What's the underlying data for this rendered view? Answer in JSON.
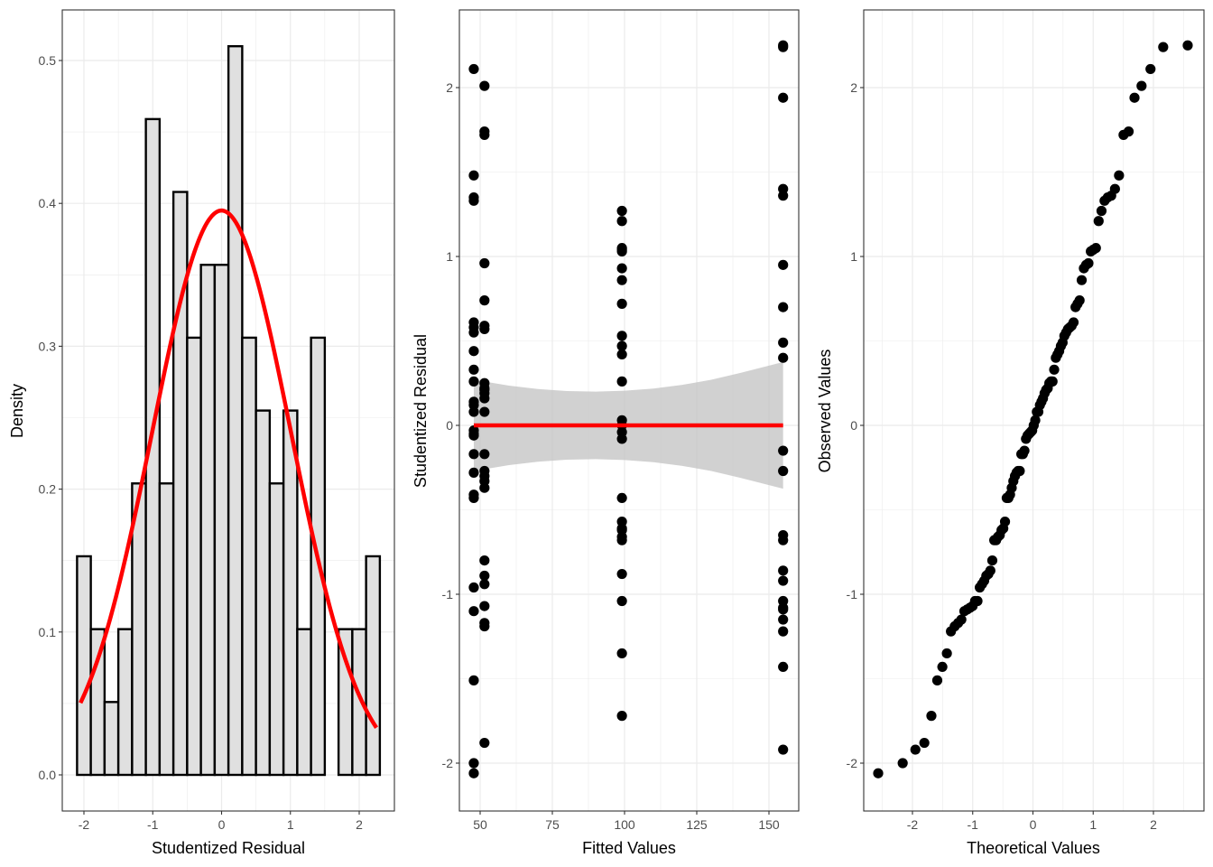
{
  "chart_data": [
    {
      "type": "histogram",
      "panel": "residual-histogram",
      "xlabel": "Studentized Residual",
      "ylabel": "Density",
      "xlim": [
        -2.3,
        2.5
      ],
      "ylim": [
        -0.025,
        0.535
      ],
      "x_ticks": [
        -2,
        -1,
        0,
        1,
        2
      ],
      "x_tick_labels": [
        "-2",
        "-1",
        "0",
        "1",
        "2"
      ],
      "y_ticks": [
        0,
        0.1,
        0.2,
        0.3,
        0.4,
        0.5
      ],
      "y_tick_labels": [
        "0.0",
        "0.1",
        "0.2",
        "0.3",
        "0.4",
        "0.5"
      ],
      "grid": true,
      "bin_start": -2.1,
      "bin_width": 0.2,
      "densities": [
        0.153,
        0.102,
        0.051,
        0.102,
        0.204,
        0.459,
        0.204,
        0.408,
        0.306,
        0.357,
        0.357,
        0.51,
        0.306,
        0.255,
        0.204,
        0.255,
        0.102,
        0.306,
        0,
        0.102,
        0.102,
        0.153
      ],
      "bar_fill": "#e0e0e0",
      "bar_stroke": "#000000",
      "overlay": {
        "name": "normal density",
        "mean": 0,
        "sd": 1.01,
        "x_range": [
          -2.05,
          2.25
        ],
        "color": "#ff0000"
      }
    },
    {
      "type": "scatter",
      "panel": "residual-vs-fitted",
      "xlabel": "Fitted Values",
      "ylabel": "Studentized Residual",
      "xlim": [
        44.5,
        160.5
      ],
      "ylim": [
        -2.37,
        2.46
      ],
      "x_ticks": [
        50,
        75,
        100,
        125,
        150
      ],
      "x_tick_labels": [
        "50",
        "75",
        "100",
        "125",
        "150"
      ],
      "y_ticks": [
        -2,
        -1,
        0,
        1,
        2
      ],
      "y_tick_labels": [
        "-2",
        "-1",
        "0",
        "1",
        "2"
      ],
      "grid": true,
      "point_color": "#000000",
      "groups": [
        {
          "fitted": 47.8,
          "residuals": [
            2.11,
            1.48,
            1.35,
            1.33,
            0.61,
            0.58,
            0.55,
            0.44,
            0.33,
            0.26,
            0.14,
            0.12,
            0.08,
            -0.03,
            -0.05,
            -0.06,
            -0.17,
            -0.28,
            -0.41,
            -0.43,
            -0.96,
            -1.1,
            -1.51,
            -2.0,
            -2.06
          ]
        },
        {
          "fitted": 51.5,
          "residuals": [
            2.01,
            1.74,
            1.72,
            0.96,
            0.74,
            0.59,
            0.57,
            0.25,
            0.22,
            0.21,
            0.19,
            0.16,
            0.08,
            -0.17,
            -0.27,
            -0.3,
            -0.33,
            -0.37,
            -0.8,
            -0.89,
            -0.94,
            -1.07,
            -1.17,
            -1.19,
            -1.88
          ]
        },
        {
          "fitted": 99.1,
          "residuals": [
            1.27,
            1.21,
            1.05,
            1.04,
            1.03,
            0.93,
            0.86,
            0.72,
            0.53,
            0.47,
            0.42,
            0.26,
            0.03,
            0.0,
            -0.04,
            -0.08,
            -0.43,
            -0.57,
            -0.61,
            -0.62,
            -0.66,
            -0.68,
            -0.88,
            -1.04,
            -1.35,
            -1.72
          ]
        },
        {
          "fitted": 154.9,
          "residuals": [
            2.25,
            2.24,
            1.94,
            1.4,
            1.36,
            0.95,
            0.7,
            0.49,
            0.4,
            -0.15,
            -0.27,
            -0.65,
            -0.68,
            -0.86,
            -0.92,
            -1.04,
            -1.08,
            -1.09,
            -1.15,
            -1.22,
            -1.43,
            -1.92
          ]
        }
      ],
      "smooth": {
        "method": "linear fit",
        "color": "#ff0000",
        "band_color": "#cccccc",
        "x": [
          47.8,
          60,
          70,
          80,
          90,
          100,
          110,
          120,
          130,
          140,
          154.9
        ],
        "fit": [
          0.0,
          0.0,
          0.0,
          0.0,
          0.0,
          0.0,
          0.0,
          0.0,
          0.0,
          0.0,
          0.0
        ],
        "band_half_width": [
          0.27,
          0.235,
          0.215,
          0.203,
          0.2,
          0.205,
          0.218,
          0.24,
          0.27,
          0.31,
          0.375
        ]
      }
    },
    {
      "type": "scatter",
      "panel": "normal-qq",
      "xlabel": "Theoretical Values",
      "ylabel": "Observed Values",
      "xlim": [
        -2.82,
        2.82
      ],
      "ylim": [
        -2.37,
        2.46
      ],
      "x_ticks": [
        -2,
        -1,
        0,
        1,
        2
      ],
      "x_tick_labels": [
        "-2",
        "-1",
        "0",
        "1",
        "2"
      ],
      "y_ticks": [
        -2,
        -1,
        0,
        1,
        2
      ],
      "y_tick_labels": [
        "-2",
        "-1",
        "0",
        "1",
        "2"
      ],
      "grid": true,
      "point_color": "#000000",
      "description": "sorted studentized residuals plotted against standard normal quantiles (n = 98)"
    }
  ]
}
